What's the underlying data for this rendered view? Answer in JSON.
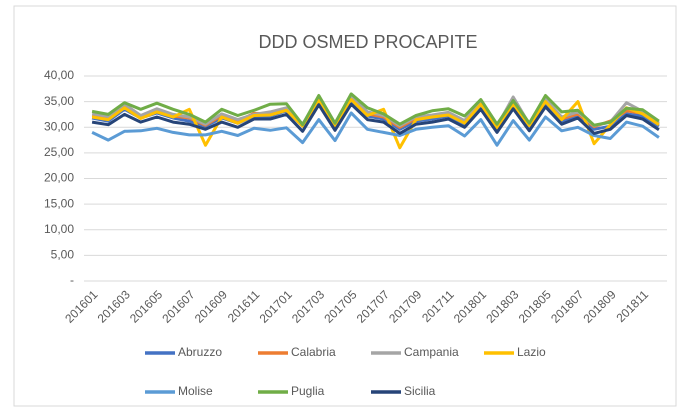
{
  "chart_data": {
    "type": "line",
    "title": "DDD OSMED PROCAPITE",
    "categories": [
      "201601",
      null,
      "201603",
      null,
      "201605",
      null,
      "201607",
      null,
      "201609",
      null,
      "201611",
      null,
      "201701",
      null,
      "201703",
      null,
      "201705",
      null,
      "201707",
      null,
      "201709",
      null,
      "201711",
      null,
      "201801",
      null,
      "201803",
      null,
      "201805",
      null,
      "201807",
      null,
      "201809",
      null,
      "201811",
      null
    ],
    "series": [
      {
        "name": "Abruzzo",
        "color": "#4472c4",
        "values": [
          31.8,
          31.2,
          33.5,
          31.8,
          32.8,
          31.8,
          31.2,
          30.2,
          31.8,
          30.8,
          32.2,
          32.2,
          33.2,
          30.2,
          35.2,
          30.2,
          35.2,
          32.2,
          31.6,
          29.6,
          31.2,
          31.6,
          32.2,
          30.6,
          34.2,
          29.6,
          34.2,
          30.2,
          34.6,
          31.2,
          32.2,
          29.6,
          30.2,
          32.6,
          32.2,
          30.2
        ]
      },
      {
        "name": "Calabria",
        "color": "#ed7d31",
        "values": [
          32.3,
          31.8,
          34.2,
          32.0,
          33.4,
          32.2,
          31.8,
          30.4,
          32.3,
          31.2,
          32.7,
          32.6,
          33.5,
          30.4,
          35.4,
          30.4,
          35.6,
          32.6,
          32.0,
          30.0,
          31.7,
          32.1,
          32.6,
          31.0,
          34.7,
          30.0,
          34.6,
          30.4,
          35.2,
          31.6,
          32.6,
          30.1,
          31.2,
          33.2,
          32.7,
          30.8
        ]
      },
      {
        "name": "Campania",
        "color": "#a5a5a5",
        "values": [
          32.6,
          32.1,
          34.5,
          32.3,
          33.6,
          32.5,
          32.0,
          30.6,
          32.6,
          31.5,
          32.5,
          33.0,
          33.8,
          30.6,
          35.7,
          30.6,
          35.9,
          33.0,
          32.3,
          30.3,
          32.0,
          32.4,
          32.9,
          31.3,
          35.0,
          30.2,
          35.9,
          30.6,
          35.5,
          32.0,
          33.0,
          30.3,
          31.0,
          34.8,
          33.1,
          30.8
        ]
      },
      {
        "name": "Lazio",
        "color": "#ffc000",
        "values": [
          32.0,
          31.5,
          33.8,
          31.7,
          33.0,
          32.0,
          33.5,
          26.5,
          32.0,
          30.8,
          32.3,
          32.4,
          33.3,
          30.2,
          35.2,
          30.3,
          35.4,
          32.3,
          33.5,
          26.0,
          31.5,
          32.0,
          32.4,
          30.8,
          34.5,
          29.9,
          34.5,
          30.3,
          35.0,
          31.5,
          35.0,
          26.8,
          30.5,
          33.8,
          32.6,
          30.5
        ]
      },
      {
        "name": "Molise",
        "color": "#5b9bd5",
        "values": [
          29.0,
          27.5,
          29.2,
          29.3,
          29.8,
          29.0,
          28.5,
          28.5,
          29.2,
          28.4,
          29.8,
          29.4,
          29.9,
          27.0,
          31.5,
          27.4,
          32.8,
          29.6,
          29.0,
          28.4,
          29.6,
          30.0,
          30.3,
          28.3,
          31.5,
          26.5,
          31.3,
          27.5,
          32.0,
          29.3,
          30.0,
          28.4,
          27.8,
          31.0,
          30.2,
          28.0
        ]
      },
      {
        "name": "Puglia",
        "color": "#70ad47",
        "values": [
          33.1,
          32.5,
          34.8,
          33.5,
          34.7,
          33.5,
          32.5,
          31.0,
          33.5,
          32.3,
          33.3,
          34.5,
          34.6,
          30.5,
          36.2,
          30.8,
          36.5,
          33.8,
          32.6,
          30.6,
          32.3,
          33.2,
          33.6,
          32.2,
          35.4,
          30.6,
          35.2,
          30.8,
          36.2,
          33.0,
          33.3,
          30.4,
          31.0,
          33.7,
          33.4,
          31.2
        ]
      },
      {
        "name": "Sicilia",
        "color": "#264478",
        "values": [
          31.0,
          30.5,
          32.5,
          31.0,
          32.0,
          31.0,
          30.6,
          29.6,
          31.0,
          30.0,
          31.6,
          31.6,
          32.5,
          29.2,
          34.4,
          29.4,
          34.5,
          31.5,
          31.0,
          28.8,
          30.6,
          31.0,
          31.6,
          30.0,
          33.5,
          29.0,
          33.6,
          29.3,
          34.0,
          30.6,
          31.8,
          28.8,
          29.6,
          32.3,
          31.6,
          29.5
        ]
      }
    ],
    "ylim": [
      0,
      40
    ],
    "yticks": [
      {
        "value": 0,
        "label": "-"
      },
      {
        "value": 5,
        "label": "5,00"
      },
      {
        "value": 10,
        "label": "10,00"
      },
      {
        "value": 15,
        "label": "15,00"
      },
      {
        "value": 20,
        "label": "20,00"
      },
      {
        "value": 25,
        "label": "25,00"
      },
      {
        "value": 30,
        "label": "30,00"
      },
      {
        "value": 35,
        "label": "35,00"
      },
      {
        "value": 40,
        "label": "40,00"
      }
    ],
    "grid": true,
    "legend": "bottom"
  }
}
